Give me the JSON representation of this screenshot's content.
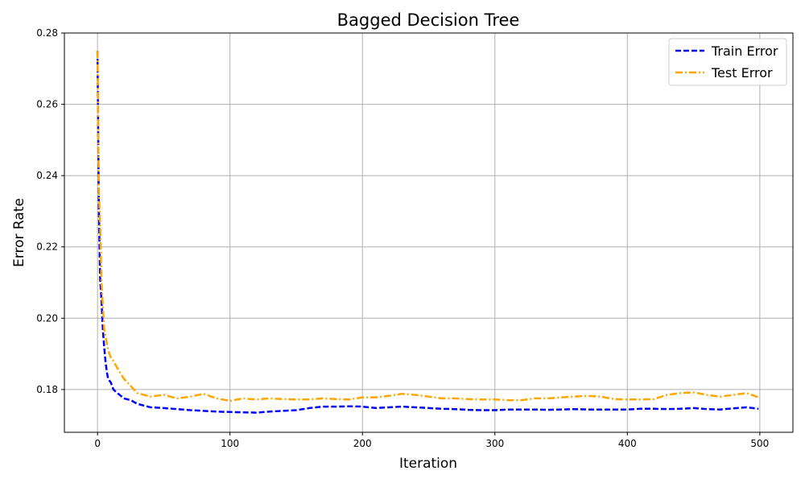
{
  "chart_data": {
    "type": "line",
    "title": "Bagged Decision Tree",
    "xlabel": "Iteration",
    "ylabel": "Error Rate",
    "xlim": [
      -25,
      525
    ],
    "ylim": [
      0.168,
      0.28
    ],
    "xticks": [
      0,
      100,
      200,
      300,
      400,
      500
    ],
    "yticks": [
      0.18,
      0.2,
      0.22,
      0.24,
      0.26,
      0.28
    ],
    "xtick_labels": [
      "0",
      "100",
      "200",
      "300",
      "400",
      "500"
    ],
    "ytick_labels": [
      "0.18",
      "0.20",
      "0.22",
      "0.24",
      "0.26",
      "0.28"
    ],
    "grid": true,
    "legend_position": "top-right",
    "series": [
      {
        "name": "Train Error",
        "color": "#0000ff",
        "style": "dashed",
        "x": [
          0,
          1,
          2,
          3,
          4,
          5,
          6,
          7,
          8,
          10,
          12,
          15,
          20,
          25,
          30,
          35,
          40,
          50,
          60,
          70,
          80,
          90,
          100,
          110,
          120,
          130,
          140,
          150,
          160,
          170,
          180,
          190,
          200,
          210,
          220,
          230,
          240,
          250,
          260,
          270,
          280,
          290,
          300,
          310,
          320,
          330,
          340,
          350,
          360,
          370,
          380,
          390,
          400,
          410,
          420,
          430,
          440,
          450,
          460,
          470,
          480,
          490,
          499
        ],
        "y": [
          0.275,
          0.231,
          0.211,
          0.205,
          0.197,
          0.192,
          0.188,
          0.185,
          0.183,
          0.182,
          0.18,
          0.179,
          0.1775,
          0.177,
          0.176,
          0.1755,
          0.175,
          0.1748,
          0.1745,
          0.1742,
          0.174,
          0.1738,
          0.1737,
          0.1736,
          0.1735,
          0.1738,
          0.174,
          0.1742,
          0.1748,
          0.1752,
          0.1752,
          0.1753,
          0.1752,
          0.1748,
          0.175,
          0.1752,
          0.175,
          0.1748,
          0.1746,
          0.1745,
          0.1743,
          0.1742,
          0.1742,
          0.1744,
          0.1744,
          0.1744,
          0.1743,
          0.1744,
          0.1745,
          0.1744,
          0.1744,
          0.1744,
          0.1744,
          0.1746,
          0.1746,
          0.1745,
          0.1746,
          0.1748,
          0.1745,
          0.1744,
          0.1747,
          0.175,
          0.1746
        ]
      },
      {
        "name": "Test Error",
        "color": "#ffa500",
        "style": "dashdot",
        "x": [
          0,
          1,
          2,
          3,
          4,
          5,
          6,
          7,
          8,
          10,
          12,
          15,
          20,
          25,
          30,
          35,
          40,
          50,
          60,
          70,
          80,
          90,
          100,
          110,
          120,
          130,
          140,
          150,
          160,
          170,
          180,
          190,
          200,
          210,
          220,
          230,
          240,
          250,
          260,
          270,
          280,
          290,
          300,
          310,
          320,
          330,
          340,
          350,
          360,
          370,
          380,
          390,
          400,
          410,
          420,
          430,
          440,
          450,
          460,
          470,
          480,
          490,
          499
        ],
        "y": [
          0.275,
          0.236,
          0.226,
          0.21,
          0.204,
          0.197,
          0.195,
          0.193,
          0.191,
          0.189,
          0.188,
          0.186,
          0.183,
          0.181,
          0.179,
          0.1785,
          0.178,
          0.1785,
          0.1775,
          0.178,
          0.1788,
          0.1775,
          0.1768,
          0.1775,
          0.1772,
          0.1775,
          0.1773,
          0.1772,
          0.1772,
          0.1775,
          0.1773,
          0.1772,
          0.1778,
          0.1778,
          0.1782,
          0.1788,
          0.1785,
          0.178,
          0.1775,
          0.1775,
          0.1773,
          0.1772,
          0.1772,
          0.177,
          0.177,
          0.1775,
          0.1775,
          0.1778,
          0.178,
          0.1782,
          0.178,
          0.1773,
          0.1772,
          0.1772,
          0.1773,
          0.1785,
          0.179,
          0.1792,
          0.1785,
          0.178,
          0.1785,
          0.179,
          0.1778
        ]
      }
    ]
  }
}
